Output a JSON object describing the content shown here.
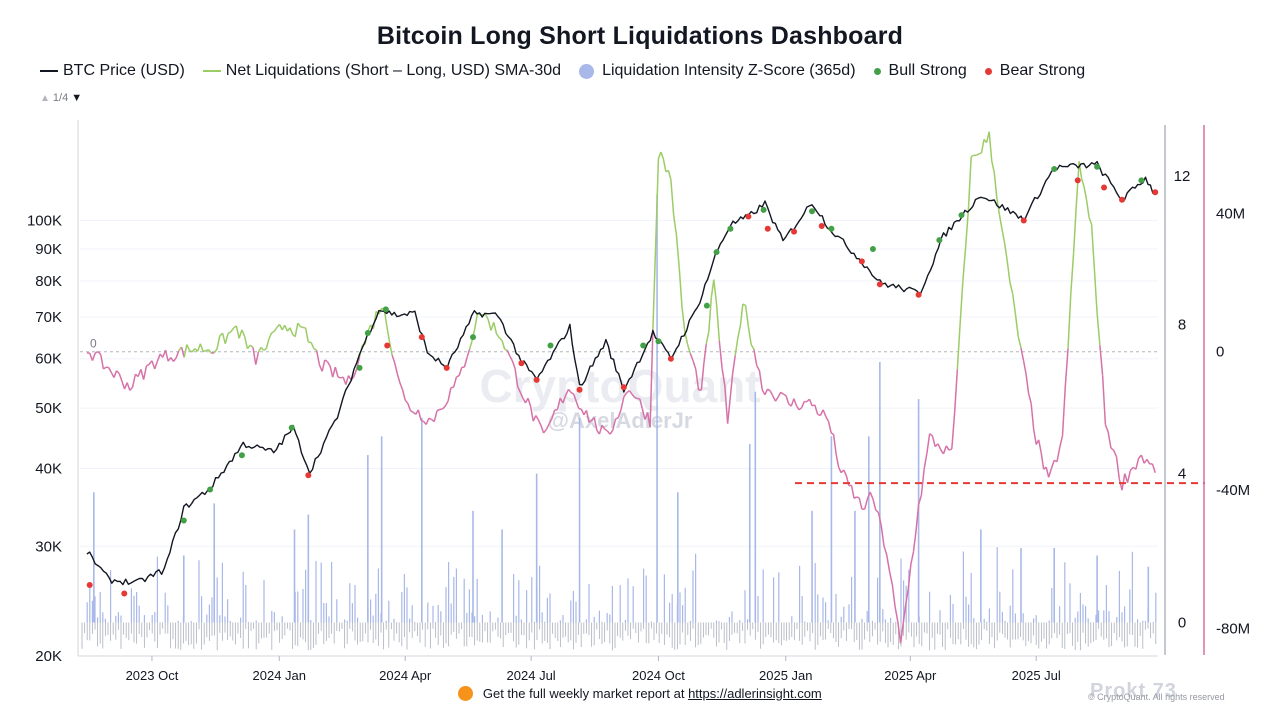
{
  "title": "Bitcoin Long Short Liquidations Dashboard",
  "legend": [
    {
      "label": "BTC Price (USD)",
      "kind": "line",
      "color": "#131722"
    },
    {
      "label": "Net Liquidations (Short – Long, USD) SMA-30d",
      "kind": "line",
      "color": "#9ccc65"
    },
    {
      "label": "Liquidation Intensity Z-Score (365d)",
      "kind": "dot",
      "color": "#a8b8e8"
    },
    {
      "label": "Bull Strong",
      "kind": "dot",
      "color": "#43a047"
    },
    {
      "label": "Bear Strong",
      "kind": "dot",
      "color": "#e53935"
    }
  ],
  "pager": {
    "label": "1/4",
    "up_icon": "triangle-up-icon",
    "down_icon": "triangle-down-icon"
  },
  "watermark": {
    "text": "CryptoQuant",
    "handle": "@AxelAdlerJr"
  },
  "footer": {
    "text": "Get the full weekly market report at",
    "link": "https://adlerinsight.com"
  },
  "copyright": "© CryptoQuant. All rights reserved",
  "brand": "Prokt 73",
  "chart_data": {
    "type": "line",
    "x_ticks": [
      "2023 Oct",
      "2024 Jan",
      "2024 Apr",
      "2024 Jul",
      "2024 Oct",
      "2025 Jan",
      "2025 Apr",
      "2025 Jul"
    ],
    "left_axis": {
      "scale": "log",
      "ticks": [
        "100K",
        "90K",
        "80K",
        "70K",
        "60K",
        "50K",
        "40K",
        "30K",
        "20K"
      ],
      "range": [
        20000,
        145000
      ]
    },
    "right_axis_1": {
      "ticks": [
        "12",
        "8",
        "4",
        "0"
      ],
      "range": [
        -0.9,
        13.5
      ]
    },
    "right_axis_2": {
      "ticks": [
        "40M",
        "0",
        "-40M",
        "-80M"
      ],
      "range": [
        -88,
        67
      ]
    },
    "zero_line_label": "0",
    "threshold_line": {
      "value": -38,
      "color": "#e53935"
    },
    "series": [
      {
        "name": "BTC Price (USD)",
        "color": "#131722",
        "points": [
          [
            "2023-08-15",
            29400
          ],
          [
            "2023-08-31",
            26500
          ],
          [
            "2023-09-20",
            26200
          ],
          [
            "2023-10-10",
            27500
          ],
          [
            "2023-10-24",
            34500
          ],
          [
            "2023-11-12",
            37200
          ],
          [
            "2023-12-06",
            43800
          ],
          [
            "2023-12-28",
            42500
          ],
          [
            "2024-01-11",
            46500
          ],
          [
            "2024-01-23",
            39500
          ],
          [
            "2024-02-12",
            48500
          ],
          [
            "2024-02-28",
            61000
          ],
          [
            "2024-03-13",
            72000
          ],
          [
            "2024-03-26",
            70500
          ],
          [
            "2024-04-08",
            71000
          ],
          [
            "2024-04-17",
            61500
          ],
          [
            "2024-05-01",
            58000
          ],
          [
            "2024-05-21",
            71000
          ],
          [
            "2024-06-07",
            70500
          ],
          [
            "2024-06-24",
            59500
          ],
          [
            "2024-07-05",
            55500
          ],
          [
            "2024-07-29",
            67500
          ],
          [
            "2024-08-05",
            54000
          ],
          [
            "2024-08-24",
            64000
          ],
          [
            "2024-09-06",
            53500
          ],
          [
            "2024-09-27",
            66000
          ],
          [
            "2024-10-10",
            60000
          ],
          [
            "2024-10-29",
            72500
          ],
          [
            "2024-11-13",
            90000
          ],
          [
            "2024-11-22",
            98500
          ],
          [
            "2024-12-05",
            101500
          ],
          [
            "2024-12-17",
            106500
          ],
          [
            "2024-12-30",
            92500
          ],
          [
            "2025-01-20",
            107000
          ],
          [
            "2025-02-02",
            97000
          ],
          [
            "2025-02-25",
            86000
          ],
          [
            "2025-03-10",
            79500
          ],
          [
            "2025-04-08",
            76500
          ],
          [
            "2025-04-25",
            94500
          ],
          [
            "2025-05-22",
            110000
          ],
          [
            "2025-06-22",
            100500
          ],
          [
            "2025-07-14",
            121500
          ],
          [
            "2025-08-14",
            123000
          ],
          [
            "2025-09-01",
            108000
          ],
          [
            "2025-09-18",
            117000
          ],
          [
            "2025-09-25",
            110000
          ]
        ]
      },
      {
        "name": "Net Liquidations (Short – Long, USD) SMA-30d",
        "color_pos": "#9ccc65",
        "color_neg": "#d672a8",
        "points": [
          [
            "2023-08-15",
            1
          ],
          [
            "2023-08-25",
            -3
          ],
          [
            "2023-09-15",
            -10
          ],
          [
            "2023-10-05",
            -2
          ],
          [
            "2023-11-01",
            1
          ],
          [
            "2023-11-15",
            1
          ],
          [
            "2023-12-01",
            7
          ],
          [
            "2023-12-15",
            -2
          ],
          [
            "2024-01-05",
            8
          ],
          [
            "2024-01-20",
            5
          ],
          [
            "2024-02-01",
            -4
          ],
          [
            "2024-02-20",
            -9
          ],
          [
            "2024-03-05",
            5
          ],
          [
            "2024-03-15",
            14
          ],
          [
            "2024-04-01",
            -15
          ],
          [
            "2024-04-20",
            -20
          ],
          [
            "2024-05-10",
            -8
          ],
          [
            "2024-05-25",
            12
          ],
          [
            "2024-06-10",
            4
          ],
          [
            "2024-06-25",
            -12
          ],
          [
            "2024-07-10",
            -25
          ],
          [
            "2024-07-28",
            -10
          ],
          [
            "2024-08-10",
            -18
          ],
          [
            "2024-08-25",
            -25
          ],
          [
            "2024-09-10",
            -10
          ],
          [
            "2024-09-25",
            -20
          ],
          [
            "2024-10-01",
            58
          ],
          [
            "2024-10-10",
            50
          ],
          [
            "2024-10-20",
            5
          ],
          [
            "2024-11-01",
            -12
          ],
          [
            "2024-11-10",
            20
          ],
          [
            "2024-11-20",
            -20
          ],
          [
            "2024-12-01",
            15
          ],
          [
            "2024-12-15",
            -10
          ],
          [
            "2025-01-05",
            -15
          ],
          [
            "2025-01-20",
            -15
          ],
          [
            "2025-02-01",
            -20
          ],
          [
            "2025-02-10",
            -35
          ],
          [
            "2025-02-25",
            -45
          ],
          [
            "2025-03-05",
            -42
          ],
          [
            "2025-03-15",
            -58
          ],
          [
            "2025-03-25",
            -85
          ],
          [
            "2025-04-07",
            -45
          ],
          [
            "2025-04-15",
            -25
          ],
          [
            "2025-05-01",
            -30
          ],
          [
            "2025-05-15",
            55
          ],
          [
            "2025-05-28",
            62
          ],
          [
            "2025-06-10",
            25
          ],
          [
            "2025-06-20",
            0
          ],
          [
            "2025-07-01",
            -25
          ],
          [
            "2025-07-10",
            -38
          ],
          [
            "2025-07-20",
            -25
          ],
          [
            "2025-08-01",
            55
          ],
          [
            "2025-08-10",
            35
          ],
          [
            "2025-08-20",
            -20
          ],
          [
            "2025-09-01",
            -38
          ],
          [
            "2025-09-15",
            -30
          ],
          [
            "2025-09-25",
            -35
          ]
        ]
      },
      {
        "name": "Liquidation Intensity Z-Score (365d)",
        "color": "#a8b8e8",
        "points": [
          [
            "2023-08-20",
            3.5
          ],
          [
            "2023-10-24",
            1.8
          ],
          [
            "2023-11-15",
            3.2
          ],
          [
            "2024-01-12",
            2.5
          ],
          [
            "2024-01-22",
            2.9
          ],
          [
            "2024-03-05",
            4.5
          ],
          [
            "2024-03-15",
            5.0
          ],
          [
            "2024-04-13",
            5.5
          ],
          [
            "2024-05-20",
            3.0
          ],
          [
            "2024-06-10",
            2.5
          ],
          [
            "2024-07-05",
            4.0
          ],
          [
            "2024-08-05",
            5.5
          ],
          [
            "2024-09-30",
            11.5
          ],
          [
            "2024-10-15",
            3.5
          ],
          [
            "2024-12-06",
            4.8
          ],
          [
            "2024-12-10",
            6.2
          ],
          [
            "2025-01-20",
            3.0
          ],
          [
            "2025-02-03",
            5.0
          ],
          [
            "2025-02-20",
            3.0
          ],
          [
            "2025-03-02",
            5.0
          ],
          [
            "2025-03-10",
            7.0
          ],
          [
            "2025-04-07",
            6.0
          ],
          [
            "2025-05-22",
            2.5
          ],
          [
            "2025-06-20",
            2.0
          ],
          [
            "2025-07-14",
            2.0
          ],
          [
            "2025-08-14",
            1.8
          ],
          [
            "2025-09-20",
            1.5
          ]
        ]
      },
      {
        "name": "Bull Strong",
        "color": "#43a047",
        "points": [
          [
            "2023-10-24",
            33000
          ],
          [
            "2023-11-12",
            37000
          ],
          [
            "2023-12-05",
            42000
          ],
          [
            "2024-01-10",
            46500
          ],
          [
            "2024-02-28",
            58000
          ],
          [
            "2024-03-05",
            66000
          ],
          [
            "2024-03-18",
            72000
          ],
          [
            "2024-05-20",
            65000
          ],
          [
            "2024-07-15",
            63000
          ],
          [
            "2024-09-20",
            63000
          ],
          [
            "2024-10-01",
            64000
          ],
          [
            "2024-11-05",
            73000
          ],
          [
            "2024-11-12",
            89000
          ],
          [
            "2024-11-22",
            97000
          ],
          [
            "2024-12-16",
            104000
          ],
          [
            "2025-01-20",
            103500
          ],
          [
            "2025-02-03",
            97000
          ],
          [
            "2025-03-05",
            90000
          ],
          [
            "2025-04-22",
            93000
          ],
          [
            "2025-05-08",
            102000
          ],
          [
            "2025-07-14",
            121000
          ],
          [
            "2025-08-14",
            122000
          ],
          [
            "2025-09-15",
            116000
          ]
        ]
      },
      {
        "name": "Bear Strong",
        "color": "#e53935",
        "points": [
          [
            "2023-08-17",
            26000
          ],
          [
            "2023-09-11",
            25200
          ],
          [
            "2024-01-22",
            39000
          ],
          [
            "2024-03-19",
            63000
          ],
          [
            "2024-04-13",
            65000
          ],
          [
            "2024-05-01",
            58000
          ],
          [
            "2024-06-24",
            59000
          ],
          [
            "2024-07-05",
            55500
          ],
          [
            "2024-08-05",
            53500
          ],
          [
            "2024-09-06",
            54000
          ],
          [
            "2024-10-10",
            60000
          ],
          [
            "2024-12-05",
            101500
          ],
          [
            "2024-12-19",
            97000
          ],
          [
            "2025-01-07",
            96000
          ],
          [
            "2025-01-27",
            98000
          ],
          [
            "2025-02-25",
            86000
          ],
          [
            "2025-03-10",
            79000
          ],
          [
            "2025-04-07",
            76000
          ],
          [
            "2025-06-22",
            100000
          ],
          [
            "2025-07-31",
            116000
          ],
          [
            "2025-08-19",
            113000
          ],
          [
            "2025-09-01",
            108000
          ],
          [
            "2025-09-25",
            111000
          ]
        ]
      }
    ],
    "grid": "horizontal, faint"
  }
}
